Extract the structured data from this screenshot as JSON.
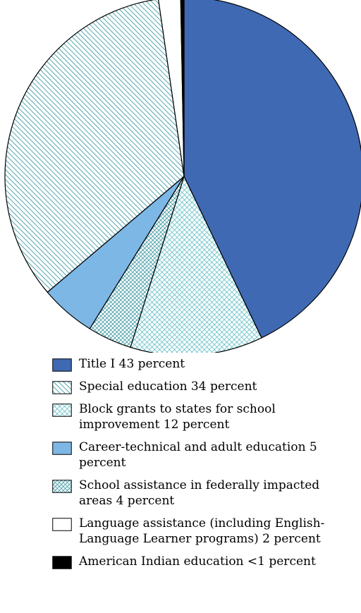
{
  "chart_data": {
    "type": "pie",
    "title": "",
    "legend_position": "bottom",
    "slices": [
      {
        "label": "Title I 43 percent",
        "value": 43,
        "fill": "solid",
        "color": "#3f69b3"
      },
      {
        "label": "Block grants to states for school improvement 12 percent",
        "value": 12,
        "fill": "crosshatch",
        "color": "#55b9c1"
      },
      {
        "label": "School assistance in federally impacted areas 4 percent",
        "value": 4,
        "fill": "dense-diagonal",
        "color": "#2a8f9a"
      },
      {
        "label": "Career-technical and adult education 5 percent",
        "value": 5,
        "fill": "solid",
        "color": "#7db7e6"
      },
      {
        "label": "Special education 34 percent",
        "value": 34,
        "fill": "diagonal",
        "color": "#2a8f9a"
      },
      {
        "label": "Language assistance (including English-Language Learner programs) 2 percent",
        "value": 2,
        "fill": "solid",
        "color": "#ffffff"
      },
      {
        "label": "American Indian education <1 percent",
        "value": 0.3,
        "fill": "solid",
        "color": "#000000"
      }
    ],
    "legend_order": [
      0,
      4,
      1,
      3,
      2,
      5,
      6
    ]
  }
}
